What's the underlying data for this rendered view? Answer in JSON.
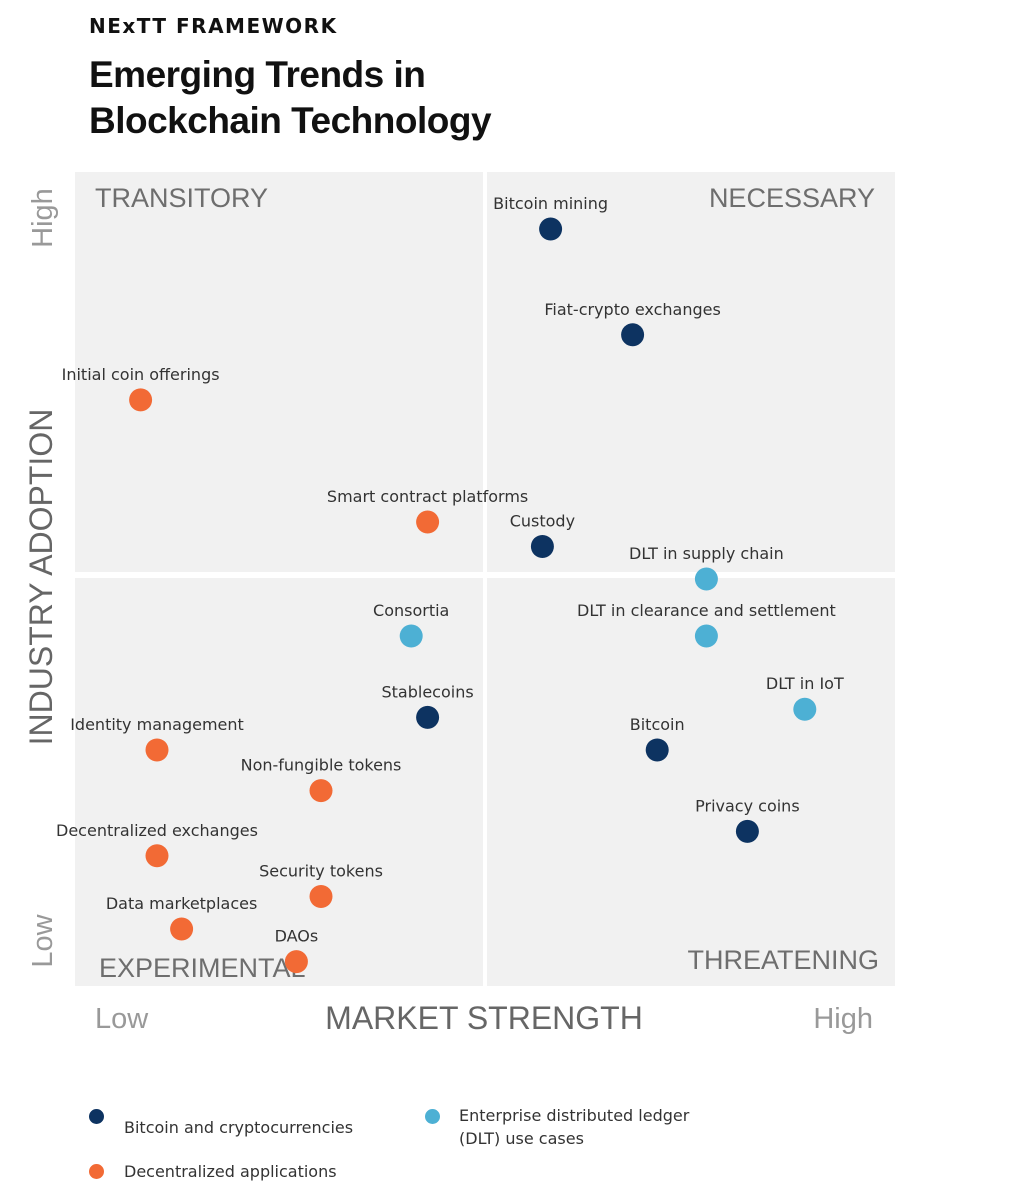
{
  "header": {
    "kicker": "NExTT FRAMEWORK",
    "title_line1": "Emerging Trends in",
    "title_line2": "Blockchain Technology"
  },
  "chart_data": {
    "type": "scatter",
    "title": "Emerging Trends in Blockchain Technology",
    "xlabel": "MARKET STRENGTH",
    "ylabel": "INDUSTRY ADOPTION",
    "x_tick_labels": {
      "low": "Low",
      "high": "High"
    },
    "y_tick_labels": {
      "low": "Low",
      "high": "High"
    },
    "xlim": [
      0,
      100
    ],
    "ylim": [
      0,
      100
    ],
    "grid": false,
    "legend_position": "bottom",
    "quadrants": {
      "top_left": "TRANSITORY",
      "top_right": "NECESSARY",
      "bottom_left": "EXPERIMENTAL",
      "bottom_right": "THREATENING"
    },
    "colors": {
      "crypto": "#0d3361",
      "dapps": "#f26a35",
      "dlt": "#4db0d4",
      "panel": "#f1f1f1"
    },
    "series": [
      {
        "name": "Bitcoin and cryptocurrencies",
        "key": "crypto",
        "points": [
          {
            "label": "Bitcoin mining",
            "x": 58,
            "y": 93
          },
          {
            "label": "Fiat-crypto exchanges",
            "x": 68,
            "y": 80
          },
          {
            "label": "Custody",
            "x": 57,
            "y": 54
          },
          {
            "label": "Stablecoins",
            "x": 43,
            "y": 33
          },
          {
            "label": "Bitcoin",
            "x": 71,
            "y": 29
          },
          {
            "label": "Privacy coins",
            "x": 82,
            "y": 19
          }
        ]
      },
      {
        "name": "Decentralized applications",
        "key": "dapps",
        "points": [
          {
            "label": "Initial coin offerings",
            "x": 8,
            "y": 72
          },
          {
            "label": "Smart contract platforms",
            "x": 43,
            "y": 57
          },
          {
            "label": "Identity management",
            "x": 10,
            "y": 29
          },
          {
            "label": "Non-fungible tokens",
            "x": 30,
            "y": 24
          },
          {
            "label": "Decentralized exchanges",
            "x": 10,
            "y": 16
          },
          {
            "label": "Security tokens",
            "x": 30,
            "y": 11
          },
          {
            "label": "Data marketplaces",
            "x": 13,
            "y": 7
          },
          {
            "label": "DAOs",
            "x": 27,
            "y": 3
          }
        ]
      },
      {
        "name": "Enterprise distributed ledger (DLT) use cases",
        "key": "dlt",
        "points": [
          {
            "label": "DLT in supply chain",
            "x": 77,
            "y": 50
          },
          {
            "label": "DLT in clearance and settlement",
            "x": 77,
            "y": 43
          },
          {
            "label": "Consortia",
            "x": 41,
            "y": 43
          },
          {
            "label": "DLT in IoT",
            "x": 89,
            "y": 34
          }
        ]
      }
    ]
  },
  "legend": {
    "items": [
      {
        "key": "crypto",
        "lines": [
          "Bitcoin and cryptocurrencies"
        ]
      },
      {
        "key": "dapps",
        "lines": [
          "Decentralized applications"
        ]
      },
      {
        "key": "dlt",
        "lines": [
          "Enterprise distributed ledger",
          "(DLT) use cases"
        ]
      }
    ]
  }
}
